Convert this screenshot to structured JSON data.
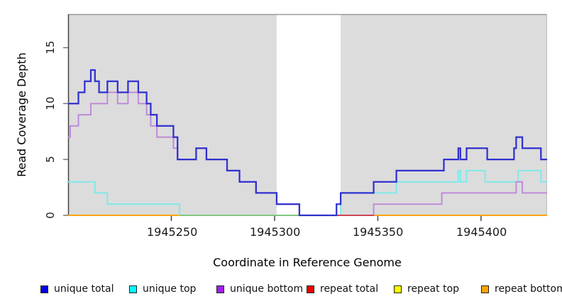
{
  "chart_data": {
    "type": "line",
    "subtype": "step-coverage",
    "title": "",
    "xlabel": "Coordinate in Reference Genome",
    "ylabel": "Read Coverage Depth",
    "xlim": [
      1945200,
      1945432
    ],
    "ylim": [
      0,
      18
    ],
    "xticks": [
      1945250,
      1945300,
      1945350,
      1945400
    ],
    "yticks": [
      0,
      5,
      10,
      15
    ],
    "grid": false,
    "legend_position": "bottom",
    "panel_background": "#DCDCDC",
    "covered_regions": [
      {
        "from": 1945200,
        "to": 1945301
      },
      {
        "from": 1945332,
        "to": 1945432
      }
    ],
    "baseline_overlap_segments": [
      {
        "from": 1945254,
        "to": 1945330,
        "color": "#7FC87F"
      },
      {
        "from": 1945330,
        "to": 1945348,
        "color": "#CC4455"
      }
    ],
    "series": [
      {
        "name": "repeat total",
        "color": "#DD2222",
        "width": 2,
        "points": [
          [
            1945200,
            0
          ]
        ]
      },
      {
        "name": "repeat top",
        "color": "#F2E93B",
        "width": 2,
        "points": [
          [
            1945200,
            0
          ]
        ]
      },
      {
        "name": "repeat bottom",
        "color": "#FFA500",
        "width": 2,
        "points": [
          [
            1945200,
            0
          ]
        ]
      },
      {
        "name": "unique top",
        "color": "#7FE9E9",
        "width": 2,
        "points": [
          [
            1945200,
            3
          ],
          [
            1945213,
            2
          ],
          [
            1945219,
            1
          ],
          [
            1945254,
            0
          ],
          [
            1945332,
            2
          ],
          [
            1945359,
            3
          ],
          [
            1945389,
            4
          ],
          [
            1945390,
            3
          ],
          [
            1945393,
            4
          ],
          [
            1945402,
            3
          ],
          [
            1945418,
            4
          ],
          [
            1945429,
            3
          ]
        ]
      },
      {
        "name": "unique bottom",
        "color": "#BE8CD8",
        "width": 2,
        "points": [
          [
            1945200,
            7
          ],
          [
            1945201,
            8
          ],
          [
            1945205,
            9
          ],
          [
            1945211,
            10
          ],
          [
            1945219,
            11
          ],
          [
            1945224,
            10
          ],
          [
            1945229,
            11
          ],
          [
            1945234,
            10
          ],
          [
            1945238,
            9
          ],
          [
            1945240,
            8
          ],
          [
            1945243,
            7
          ],
          [
            1945251,
            6
          ],
          [
            1945253,
            5
          ],
          [
            1945262,
            6
          ],
          [
            1945267,
            5
          ],
          [
            1945277,
            4
          ],
          [
            1945283,
            3
          ],
          [
            1945291,
            2
          ],
          [
            1945301,
            1
          ],
          [
            1945312,
            0
          ],
          [
            1945348,
            1
          ],
          [
            1945381,
            2
          ],
          [
            1945417,
            3
          ],
          [
            1945420,
            2
          ]
        ]
      },
      {
        "name": "unique total",
        "color": "#3030CF",
        "width": 2.25,
        "points": [
          [
            1945200,
            10
          ],
          [
            1945205,
            11
          ],
          [
            1945208,
            12
          ],
          [
            1945211,
            13
          ],
          [
            1945213,
            12
          ],
          [
            1945215,
            11
          ],
          [
            1945219,
            12
          ],
          [
            1945224,
            11
          ],
          [
            1945229,
            12
          ],
          [
            1945234,
            11
          ],
          [
            1945238,
            10
          ],
          [
            1945240,
            9
          ],
          [
            1945243,
            8
          ],
          [
            1945251,
            7
          ],
          [
            1945253,
            5
          ],
          [
            1945262,
            6
          ],
          [
            1945267,
            5
          ],
          [
            1945277,
            4
          ],
          [
            1945283,
            3
          ],
          [
            1945291,
            2
          ],
          [
            1945301,
            1
          ],
          [
            1945312,
            0
          ],
          [
            1945330,
            1
          ],
          [
            1945332,
            2
          ],
          [
            1945348,
            3
          ],
          [
            1945359,
            4
          ],
          [
            1945382,
            5
          ],
          [
            1945389,
            6
          ],
          [
            1945390,
            5
          ],
          [
            1945393,
            6
          ],
          [
            1945403,
            5
          ],
          [
            1945416,
            6
          ],
          [
            1945417,
            7
          ],
          [
            1945420,
            6
          ],
          [
            1945429,
            5
          ]
        ]
      }
    ]
  },
  "legend": {
    "items": [
      {
        "label": "unique total",
        "color": "#0000EE"
      },
      {
        "label": "unique top",
        "color": "#00FFFF"
      },
      {
        "label": "unique bottom",
        "color": "#A020F0"
      },
      {
        "label": "repeat total",
        "color": "#EE0000"
      },
      {
        "label": "repeat top",
        "color": "#FFFF00"
      },
      {
        "label": "repeat bottom",
        "color": "#FFA500"
      }
    ]
  }
}
